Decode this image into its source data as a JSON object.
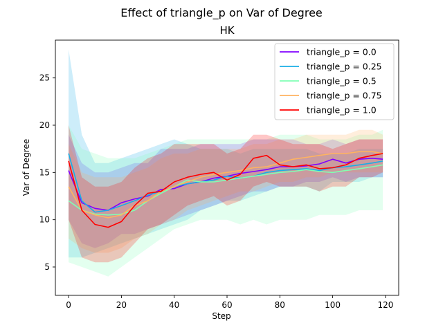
{
  "chart_data": {
    "type": "line",
    "title": "Effect of triangle_p on  Var of Degree",
    "subtitle": "HK",
    "xlabel": "Step",
    "ylabel": "Var of Degree",
    "xlim": [
      -5,
      125
    ],
    "ylim": [
      2,
      29
    ],
    "xticks": [
      0,
      20,
      40,
      60,
      80,
      100,
      120
    ],
    "yticks": [
      5,
      10,
      15,
      20,
      25
    ],
    "grid": false,
    "legend_position": "top-right",
    "x": [
      0,
      5,
      10,
      15,
      20,
      25,
      30,
      35,
      40,
      45,
      50,
      55,
      60,
      65,
      70,
      75,
      80,
      85,
      90,
      95,
      100,
      105,
      110,
      115,
      119
    ],
    "series": [
      {
        "name": "triangle_p = 0.0",
        "color": "#8000ff",
        "values": [
          15.2,
          11.8,
          11.2,
          11.0,
          11.8,
          12.2,
          12.5,
          13.2,
          13.3,
          13.8,
          14.0,
          14.4,
          14.6,
          14.9,
          15.1,
          15.3,
          15.6,
          15.6,
          15.7,
          15.9,
          16.4,
          16.0,
          16.4,
          16.5,
          16.4
        ],
        "lower": [
          10.0,
          7.5,
          7.0,
          7.5,
          8.5,
          8.5,
          9.0,
          9.5,
          10.0,
          10.5,
          11.0,
          11.5,
          12.0,
          12.5,
          13.0,
          13.0,
          13.5,
          13.5,
          14.0,
          14.0,
          14.5,
          14.0,
          14.5,
          14.5,
          14.5
        ],
        "upper": [
          19.0,
          16.0,
          15.0,
          15.0,
          15.5,
          16.0,
          16.0,
          17.5,
          17.5,
          17.5,
          18.0,
          18.0,
          18.0,
          18.0,
          18.5,
          18.5,
          18.5,
          18.5,
          18.0,
          18.0,
          18.5,
          18.0,
          18.5,
          18.5,
          18.5
        ]
      },
      {
        "name": "triangle_p = 0.25",
        "color": "#1aaee6",
        "values": [
          17.0,
          12.0,
          10.8,
          11.0,
          11.5,
          12.0,
          12.6,
          13.0,
          13.5,
          13.8,
          14.0,
          14.2,
          14.6,
          14.4,
          14.6,
          15.0,
          15.2,
          15.3,
          15.4,
          15.2,
          15.5,
          15.6,
          15.8,
          16.0,
          16.2
        ],
        "lower": [
          6.0,
          6.0,
          6.5,
          7.0,
          7.5,
          8.0,
          8.5,
          9.0,
          9.5,
          10.0,
          11.0,
          11.5,
          12.0,
          12.0,
          12.5,
          13.0,
          13.5,
          13.5,
          13.5,
          13.0,
          14.0,
          14.0,
          14.0,
          14.5,
          14.5
        ],
        "upper": [
          28.0,
          19.0,
          16.0,
          16.0,
          16.5,
          17.0,
          17.5,
          18.0,
          18.5,
          18.0,
          17.5,
          17.5,
          17.5,
          17.0,
          17.5,
          17.5,
          17.5,
          17.5,
          17.5,
          17.0,
          17.0,
          17.0,
          17.5,
          17.5,
          17.5
        ]
      },
      {
        "name": "triangle_p = 0.5",
        "color": "#80ffb4",
        "values": [
          12.0,
          11.0,
          10.6,
          10.5,
          10.6,
          11.0,
          12.0,
          12.8,
          13.5,
          14.2,
          14.0,
          14.0,
          14.2,
          14.4,
          14.6,
          14.8,
          15.0,
          15.1,
          15.3,
          15.1,
          15.0,
          15.2,
          15.4,
          15.6,
          15.8
        ],
        "lower": [
          5.5,
          5.0,
          4.5,
          4.0,
          5.0,
          6.0,
          7.0,
          8.0,
          9.0,
          9.5,
          10.0,
          10.0,
          10.0,
          9.5,
          10.0,
          9.5,
          10.0,
          10.0,
          10.0,
          10.5,
          10.5,
          10.5,
          11.0,
          11.0,
          11.0
        ],
        "upper": [
          20.0,
          17.5,
          17.0,
          16.5,
          16.5,
          16.5,
          17.0,
          17.5,
          18.0,
          18.5,
          18.5,
          18.5,
          18.5,
          18.5,
          18.5,
          18.5,
          19.0,
          19.0,
          19.0,
          18.5,
          18.5,
          18.5,
          19.0,
          19.0,
          19.5
        ]
      },
      {
        "name": "triangle_p = 0.75",
        "color": "#ffb360",
        "values": [
          13.5,
          11.0,
          10.5,
          10.2,
          10.5,
          11.5,
          12.0,
          13.0,
          13.5,
          14.0,
          14.5,
          14.8,
          15.0,
          15.2,
          15.5,
          15.6,
          16.0,
          16.4,
          16.6,
          16.8,
          17.0,
          17.0,
          17.2,
          17.2,
          17.0
        ],
        "lower": [
          8.0,
          7.0,
          6.5,
          6.5,
          7.0,
          8.0,
          8.5,
          9.5,
          10.0,
          11.0,
          11.5,
          12.0,
          12.5,
          13.0,
          13.0,
          13.5,
          14.0,
          14.0,
          14.5,
          14.5,
          15.0,
          15.0,
          15.0,
          15.0,
          15.0
        ],
        "upper": [
          18.0,
          15.0,
          14.5,
          14.5,
          14.5,
          15.0,
          15.5,
          16.5,
          17.0,
          17.0,
          17.5,
          17.5,
          17.5,
          17.5,
          18.0,
          18.0,
          18.5,
          18.5,
          19.0,
          19.0,
          19.0,
          19.0,
          19.5,
          19.5,
          19.0
        ]
      },
      {
        "name": "triangle_p = 1.0",
        "color": "#ff0000",
        "values": [
          16.2,
          11.0,
          9.5,
          9.2,
          9.8,
          11.5,
          12.8,
          13.0,
          14.0,
          14.5,
          14.8,
          15.0,
          14.2,
          14.8,
          16.5,
          16.8,
          15.8,
          15.6,
          15.8,
          15.4,
          15.5,
          15.8,
          16.5,
          16.8,
          17.0
        ],
        "lower": [
          10.0,
          6.0,
          5.5,
          5.5,
          6.0,
          7.5,
          9.0,
          9.5,
          10.5,
          11.5,
          12.0,
          12.5,
          11.5,
          12.0,
          13.5,
          14.0,
          13.5,
          13.5,
          13.5,
          13.0,
          13.5,
          13.5,
          14.5,
          14.5,
          15.0
        ],
        "upper": [
          20.0,
          14.5,
          13.5,
          13.5,
          14.0,
          15.5,
          16.5,
          17.0,
          18.0,
          18.0,
          18.0,
          18.0,
          17.0,
          17.5,
          19.0,
          19.0,
          18.5,
          18.0,
          18.0,
          18.0,
          17.5,
          18.0,
          18.5,
          18.5,
          18.5
        ]
      }
    ]
  }
}
